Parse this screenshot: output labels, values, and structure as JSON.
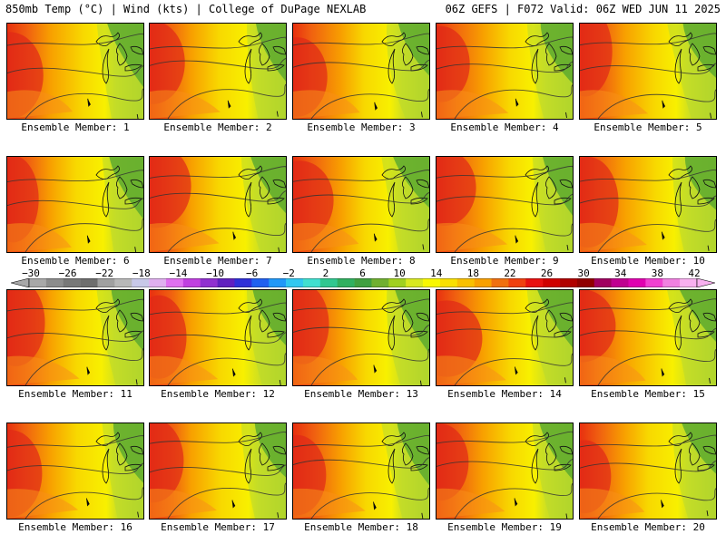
{
  "header": {
    "left": "850mb Temp (°C) | Wind (kts) | College of DuPage NEXLAB",
    "right": "06Z GEFS | F072 Valid: 06Z WED JUN 11 2025"
  },
  "panels": [
    {
      "label": "Ensemble Member: 1",
      "member": 1
    },
    {
      "label": "Ensemble Member: 2",
      "member": 2
    },
    {
      "label": "Ensemble Member: 3",
      "member": 3
    },
    {
      "label": "Ensemble Member: 4",
      "member": 4
    },
    {
      "label": "Ensemble Member: 5",
      "member": 5
    },
    {
      "label": "Ensemble Member: 6",
      "member": 6
    },
    {
      "label": "Ensemble Member: 7",
      "member": 7
    },
    {
      "label": "Ensemble Member: 8",
      "member": 8
    },
    {
      "label": "Ensemble Member: 9",
      "member": 9
    },
    {
      "label": "Ensemble Member: 10",
      "member": 10
    },
    {
      "label": "Ensemble Member: 11",
      "member": 11
    },
    {
      "label": "Ensemble Member: 12",
      "member": 12
    },
    {
      "label": "Ensemble Member: 13",
      "member": 13
    },
    {
      "label": "Ensemble Member: 14",
      "member": 14
    },
    {
      "label": "Ensemble Member: 15",
      "member": 15
    },
    {
      "label": "Ensemble Member: 16",
      "member": 16
    },
    {
      "label": "Ensemble Member: 17",
      "member": 17
    },
    {
      "label": "Ensemble Member: 18",
      "member": 18
    },
    {
      "label": "Ensemble Member: 19",
      "member": 19
    },
    {
      "label": "Ensemble Member: 20",
      "member": 20
    }
  ],
  "colorbar": {
    "ticks": [
      "-30",
      "-26",
      "-22",
      "-18",
      "-14",
      "-10",
      "-6",
      "-2",
      "2",
      "6",
      "10",
      "14",
      "18",
      "22",
      "26",
      "30",
      "34",
      "38",
      "42"
    ],
    "colors": [
      "#a8a8a8",
      "#8c8c8c",
      "#787878",
      "#6e6e6e",
      "#a0a0a0",
      "#b8b8b8",
      "#c8c8e8",
      "#e0b0f0",
      "#e070f0",
      "#c040e0",
      "#9030d0",
      "#6020c0",
      "#3030d8",
      "#2060f0",
      "#2098f8",
      "#30c8f0",
      "#40e0d0",
      "#30c890",
      "#30b060",
      "#40a040",
      "#70b030",
      "#a0d020",
      "#d8e820",
      "#f8f800",
      "#f8e000",
      "#f8c000",
      "#f8a000",
      "#f07010",
      "#f04010",
      "#e81010",
      "#d00000",
      "#b00000",
      "#900000",
      "#a00060",
      "#c00090",
      "#e000b0",
      "#f040d0",
      "#f080e0",
      "#f8b0f0"
    ]
  }
}
